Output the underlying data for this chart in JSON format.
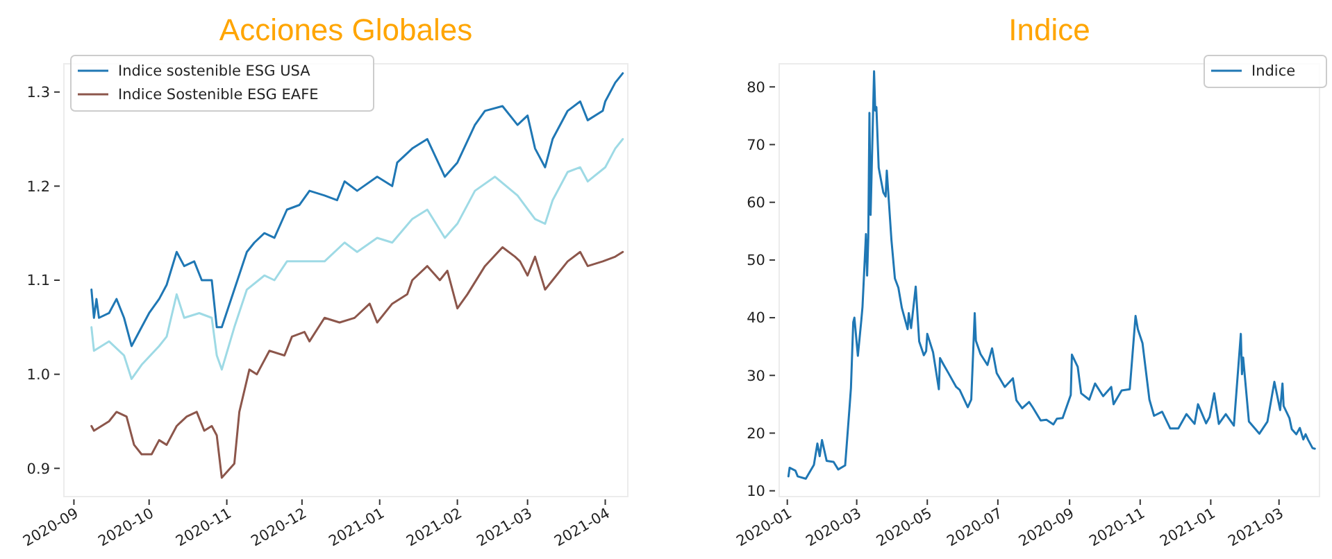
{
  "chart_data": [
    {
      "type": "line",
      "title": "Acciones Globales",
      "legend": "top left",
      "grid": false,
      "xlim": [
        "2020-08-28",
        "2021-04-10"
      ],
      "xticks": [
        "2020-09",
        "2020-10",
        "2020-11",
        "2020-12",
        "2021-01",
        "2021-02",
        "2021-03",
        "2021-04"
      ],
      "ylim": [
        0.87,
        1.33
      ],
      "yticks": [
        0.9,
        {
          "value": 1,
          "label": "1.0"
        },
        1.1,
        1.2,
        1.3
      ],
      "series": [
        {
          "name": "Indice sostenible ESG USA",
          "color": "#1f77b4",
          "x": [
            "2020-09-08",
            "2020-09-09",
            "2020-09-10",
            "2020-09-11",
            "2020-09-15",
            "2020-09-18",
            "2020-09-21",
            "2020-09-24",
            "2020-09-28",
            "2020-10-01",
            "2020-10-05",
            "2020-10-08",
            "2020-10-12",
            "2020-10-15",
            "2020-10-19",
            "2020-10-22",
            "2020-10-26",
            "2020-10-28",
            "2020-10-30",
            "2020-11-04",
            "2020-11-09",
            "2020-11-12",
            "2020-11-16",
            "2020-11-20",
            "2020-11-25",
            "2020-11-30",
            "2020-12-04",
            "2020-12-10",
            "2020-12-15",
            "2020-12-18",
            "2020-12-23",
            "2020-12-31",
            "2021-01-06",
            "2021-01-08",
            "2021-01-14",
            "2021-01-20",
            "2021-01-27",
            "2021-02-01",
            "2021-02-08",
            "2021-02-12",
            "2021-02-19",
            "2021-02-25",
            "2021-03-01",
            "2021-03-04",
            "2021-03-08",
            "2021-03-11",
            "2021-03-17",
            "2021-03-22",
            "2021-03-25",
            "2021-03-31",
            "2021-04-01",
            "2021-04-05",
            "2021-04-08"
          ],
          "values": [
            1.09,
            1.06,
            1.08,
            1.06,
            1.065,
            1.08,
            1.06,
            1.03,
            1.05,
            1.065,
            1.08,
            1.095,
            1.13,
            1.115,
            1.12,
            1.1,
            1.1,
            1.05,
            1.05,
            1.09,
            1.13,
            1.14,
            1.15,
            1.145,
            1.175,
            1.18,
            1.195,
            1.19,
            1.185,
            1.205,
            1.195,
            1.21,
            1.2,
            1.225,
            1.24,
            1.25,
            1.21,
            1.225,
            1.265,
            1.28,
            1.285,
            1.265,
            1.275,
            1.24,
            1.22,
            1.25,
            1.28,
            1.29,
            1.27,
            1.28,
            1.29,
            1.31,
            1.32
          ]
        },
        {
          "name": "Indice Sostenible ESG EAFE",
          "color": "#8c564b",
          "x": [
            "2020-09-08",
            "2020-09-09",
            "2020-09-15",
            "2020-09-18",
            "2020-09-22",
            "2020-09-25",
            "2020-09-28",
            "2020-10-02",
            "2020-10-05",
            "2020-10-08",
            "2020-10-12",
            "2020-10-16",
            "2020-10-20",
            "2020-10-23",
            "2020-10-26",
            "2020-10-28",
            "2020-10-30",
            "2020-11-04",
            "2020-11-06",
            "2020-11-10",
            "2020-11-13",
            "2020-11-18",
            "2020-11-24",
            "2020-11-27",
            "2020-12-02",
            "2020-12-04",
            "2020-12-10",
            "2020-12-16",
            "2020-12-22",
            "2020-12-28",
            "2020-12-31",
            "2021-01-06",
            "2021-01-12",
            "2021-01-14",
            "2021-01-20",
            "2021-01-25",
            "2021-01-28",
            "2021-02-01",
            "2021-02-05",
            "2021-02-12",
            "2021-02-19",
            "2021-02-24",
            "2021-02-26",
            "2021-03-01",
            "2021-03-04",
            "2021-03-08",
            "2021-03-11",
            "2021-03-17",
            "2021-03-22",
            "2021-03-25",
            "2021-03-31",
            "2021-04-05",
            "2021-04-08"
          ],
          "values": [
            0.945,
            0.94,
            0.95,
            0.96,
            0.955,
            0.925,
            0.915,
            0.915,
            0.93,
            0.925,
            0.945,
            0.955,
            0.96,
            0.94,
            0.945,
            0.935,
            0.89,
            0.905,
            0.96,
            1.005,
            1.0,
            1.025,
            1.02,
            1.04,
            1.045,
            1.035,
            1.06,
            1.055,
            1.06,
            1.075,
            1.055,
            1.075,
            1.085,
            1.1,
            1.115,
            1.1,
            1.11,
            1.07,
            1.085,
            1.115,
            1.135,
            1.125,
            1.12,
            1.105,
            1.125,
            1.09,
            1.1,
            1.12,
            1.13,
            1.115,
            1.12,
            1.125,
            1.13
          ]
        },
        {
          "color": "#9edae5",
          "x": [
            "2020-09-08",
            "2020-09-09",
            "2020-09-15",
            "2020-09-21",
            "2020-09-24",
            "2020-09-28",
            "2020-10-05",
            "2020-10-08",
            "2020-10-12",
            "2020-10-15",
            "2020-10-21",
            "2020-10-26",
            "2020-10-28",
            "2020-10-30",
            "2020-11-04",
            "2020-11-09",
            "2020-11-16",
            "2020-11-20",
            "2020-11-25",
            "2020-12-04",
            "2020-12-10",
            "2020-12-18",
            "2020-12-23",
            "2020-12-31",
            "2021-01-06",
            "2021-01-14",
            "2021-01-20",
            "2021-01-27",
            "2021-02-01",
            "2021-02-08",
            "2021-02-16",
            "2021-02-25",
            "2021-03-04",
            "2021-03-08",
            "2021-03-11",
            "2021-03-17",
            "2021-03-22",
            "2021-03-25",
            "2021-04-01",
            "2021-04-05",
            "2021-04-08"
          ],
          "values": [
            1.05,
            1.025,
            1.035,
            1.02,
            0.995,
            1.01,
            1.03,
            1.04,
            1.085,
            1.06,
            1.065,
            1.06,
            1.02,
            1.005,
            1.05,
            1.09,
            1.105,
            1.1,
            1.12,
            1.12,
            1.12,
            1.14,
            1.13,
            1.145,
            1.14,
            1.165,
            1.175,
            1.145,
            1.16,
            1.195,
            1.21,
            1.19,
            1.165,
            1.16,
            1.185,
            1.215,
            1.22,
            1.205,
            1.22,
            1.24,
            1.25
          ]
        }
      ]
    },
    {
      "type": "line",
      "title": "Indice",
      "legend": "top right",
      "grid": false,
      "xlim": [
        "2019-12-25",
        "2021-04-05"
      ],
      "xticks": [
        "2020-01",
        "2020-03",
        "2020-05",
        "2020-07",
        "2020-09",
        "2020-11",
        "2021-01",
        "2021-03"
      ],
      "ylim": [
        9,
        84
      ],
      "yticks": [
        10,
        20,
        30,
        40,
        50,
        60,
        70,
        80
      ],
      "series": [
        {
          "name": "Indice",
          "color": "#1f77b4",
          "x": [
            "2020-01-02",
            "2020-01-03",
            "2020-01-08",
            "2020-01-10",
            "2020-01-17",
            "2020-01-24",
            "2020-01-27",
            "2020-01-29",
            "2020-01-31",
            "2020-02-04",
            "2020-02-10",
            "2020-02-14",
            "2020-02-20",
            "2020-02-21",
            "2020-02-24",
            "2020-02-25",
            "2020-02-27",
            "2020-02-28",
            "2020-03-02",
            "2020-03-05",
            "2020-03-06",
            "2020-03-09",
            "2020-03-10",
            "2020-03-11",
            "2020-03-12",
            "2020-03-13",
            "2020-03-16",
            "2020-03-17",
            "2020-03-18",
            "2020-03-20",
            "2020-03-24",
            "2020-03-26",
            "2020-03-27",
            "2020-03-31",
            "2020-04-03",
            "2020-04-06",
            "2020-04-09",
            "2020-04-14",
            "2020-04-15",
            "2020-04-17",
            "2020-04-21",
            "2020-04-24",
            "2020-04-28",
            "2020-04-30",
            "2020-05-01",
            "2020-05-06",
            "2020-05-11",
            "2020-05-12",
            "2020-05-15",
            "2020-05-19",
            "2020-05-26",
            "2020-05-29",
            "2020-06-05",
            "2020-06-08",
            "2020-06-11",
            "2020-06-12",
            "2020-06-16",
            "2020-06-22",
            "2020-06-26",
            "2020-06-30",
            "2020-07-07",
            "2020-07-14",
            "2020-07-17",
            "2020-07-22",
            "2020-07-28",
            "2020-07-31",
            "2020-08-07",
            "2020-08-12",
            "2020-08-18",
            "2020-08-21",
            "2020-08-26",
            "2020-09-02",
            "2020-09-03",
            "2020-09-08",
            "2020-09-11",
            "2020-09-18",
            "2020-09-23",
            "2020-09-30",
            "2020-10-07",
            "2020-10-09",
            "2020-10-16",
            "2020-10-23",
            "2020-10-28",
            "2020-10-30",
            "2020-11-03",
            "2020-11-09",
            "2020-11-13",
            "2020-11-20",
            "2020-11-27",
            "2020-12-04",
            "2020-12-11",
            "2020-12-18",
            "2020-12-21",
            "2020-12-28",
            "2020-12-31",
            "2021-01-04",
            "2021-01-08",
            "2021-01-14",
            "2021-01-21",
            "2021-01-27",
            "2021-01-28",
            "2021-01-29",
            "2021-02-03",
            "2021-02-12",
            "2021-02-19",
            "2021-02-25",
            "2021-02-26",
            "2021-03-02",
            "2021-03-04",
            "2021-03-05",
            "2021-03-10",
            "2021-03-12",
            "2021-03-16",
            "2021-03-19",
            "2021-03-22",
            "2021-03-24",
            "2021-03-26",
            "2021-03-30",
            "2021-04-01"
          ],
          "values": [
            12.5,
            14,
            13.5,
            12.5,
            12.1,
            14.5,
            18.2,
            16,
            18.8,
            15.2,
            15,
            13.7,
            14.4,
            17,
            25,
            27.8,
            39.2,
            40,
            33.4,
            39.6,
            41.9,
            54.5,
            47.3,
            53.9,
            75.5,
            57.8,
            82.7,
            75.9,
            76.5,
            66,
            61.7,
            61,
            65.5,
            53.5,
            46.8,
            45.2,
            41.7,
            38,
            40.8,
            38.2,
            45.4,
            35.9,
            33.5,
            34.2,
            37.2,
            34,
            27.6,
            33,
            31.9,
            30.5,
            28,
            27.5,
            24.5,
            25.8,
            40.8,
            36,
            33.7,
            31.8,
            34.7,
            30.4,
            28,
            29.5,
            25.7,
            24.3,
            25.4,
            24.5,
            22.2,
            22.3,
            21.5,
            22.5,
            22.6,
            26.6,
            33.6,
            31.5,
            26.9,
            25.8,
            28.6,
            26.4,
            28,
            25,
            27.4,
            27.6,
            40.3,
            38,
            35.6,
            25.8,
            23,
            23.7,
            20.8,
            20.8,
            23.3,
            21.6,
            25,
            21.7,
            22.8,
            26.9,
            21.6,
            23.3,
            21.3,
            37.2,
            30.2,
            33.1,
            22,
            19.9,
            22,
            28.9,
            27.9,
            24,
            28.6,
            24.7,
            22.6,
            20.7,
            19.8,
            20.9,
            18.9,
            19.8,
            18.9,
            17.4,
            17.3
          ]
        }
      ]
    }
  ]
}
